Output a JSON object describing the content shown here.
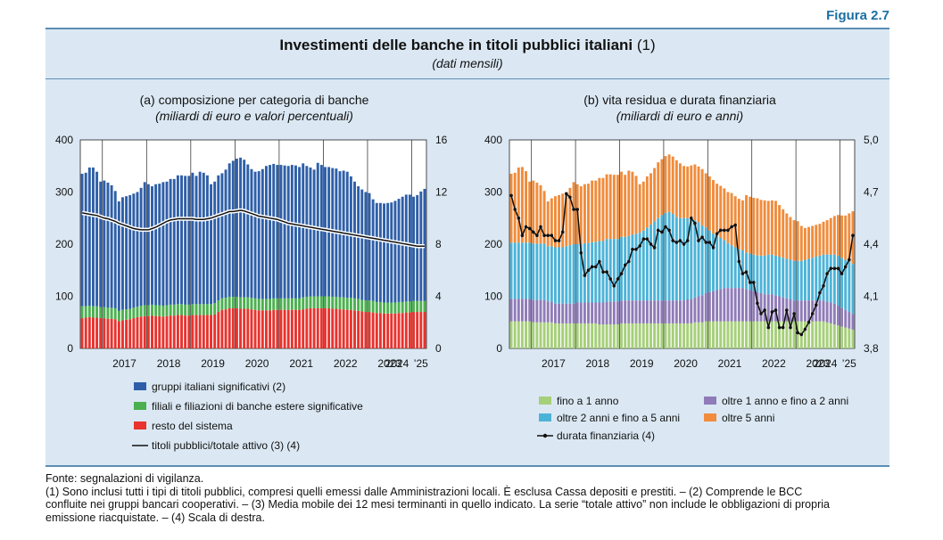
{
  "figure_label": "Figura 2.7",
  "header": {
    "title": "Investimenti delle banche in titoli pubblici italiani",
    "title_note": "(1)",
    "subtitle": "(dati mensili)"
  },
  "panels": {
    "a": {
      "title": "(a) composizione per categoria di banche",
      "subtitle": "(miliardi di euro e valori percentuali)"
    },
    "b": {
      "title": "(b) vita residua e durata finanziaria",
      "subtitle": "(miliardi di euro e anni)"
    }
  },
  "footer": {
    "source": "Fonte: segnalazioni di vigilanza.",
    "note1": "(1) Sono inclusi tutti i tipi di titoli pubblici, compresi quelli emessi dalle Amministrazioni locali. È esclusa Cassa depositi e prestiti. – (2) Comprende le BCC",
    "note2": "confluite nei gruppi bancari cooperativi. – (3) Media mobile dei 12 mesi terminanti in quello indicato. La serie “totale attivo” non include le obbligazioni di propria",
    "note3": "emissione riacquistate. – (4) Scala di destra."
  },
  "colors": {
    "blue": "#2e5fa8",
    "green": "#4cb050",
    "red": "#e8332e",
    "lightgreen": "#a6cf7a",
    "purple": "#8f7bb8",
    "cyan": "#4cb3d8",
    "orange": "#f08c3c",
    "box": "#dbe8f3"
  },
  "chart_data": [
    {
      "id": "a",
      "type": "bar",
      "stacked": true,
      "title": "(a) composizione per categoria di banche",
      "subtitle": "(miliardi di euro e valori percentuali)",
      "x_labels": [
        "2017",
        "2018",
        "2019",
        "2020",
        "2021",
        "2022",
        "2023",
        "2024",
        "’25"
      ],
      "ylim_left": [
        0,
        400
      ],
      "yticks_left": [
        "400",
        "300",
        "200",
        "100",
        "0"
      ],
      "ylim_right": [
        0,
        16
      ],
      "yticks_right": [
        "16",
        "12",
        "8",
        "4",
        "0"
      ],
      "series": [
        {
          "name": "resto del sistema",
          "color": "#e8332e",
          "values": [
            58,
            59,
            60,
            59,
            59,
            58,
            58,
            57,
            57,
            56,
            52,
            54,
            55,
            56,
            58,
            60,
            61,
            62,
            62,
            63,
            62,
            62,
            61,
            62,
            63,
            63,
            64,
            64,
            63,
            63,
            64,
            64,
            64,
            64,
            64,
            64,
            65,
            70,
            74,
            75,
            77,
            77,
            77,
            76,
            76,
            76,
            75,
            74,
            73,
            73,
            73,
            73,
            74,
            74,
            74,
            74,
            74,
            74,
            74,
            74,
            75,
            76,
            77,
            77,
            77,
            77,
            77,
            77,
            76,
            76,
            75,
            75,
            74,
            74,
            73,
            72,
            71,
            70,
            70,
            69,
            68,
            68,
            67,
            67,
            67,
            67,
            68,
            68,
            69,
            69,
            70,
            70,
            70,
            70
          ]
        },
        {
          "name": "filiali e filiazioni di banche estere significative",
          "color": "#4cb050",
          "values": [
            23,
            22,
            22,
            22,
            22,
            21,
            21,
            21,
            21,
            21,
            20,
            20,
            20,
            20,
            20,
            20,
            21,
            21,
            21,
            21,
            21,
            21,
            21,
            21,
            21,
            21,
            21,
            21,
            21,
            21,
            21,
            21,
            21,
            21,
            21,
            21,
            22,
            22,
            22,
            22,
            22,
            22,
            22,
            22,
            22,
            22,
            22,
            22,
            22,
            22,
            22,
            22,
            22,
            22,
            22,
            22,
            22,
            22,
            22,
            22,
            23,
            23,
            23,
            23,
            23,
            23,
            23,
            23,
            23,
            23,
            23,
            23,
            23,
            23,
            23,
            23,
            22,
            22,
            22,
            22,
            21,
            21,
            21,
            21,
            21,
            21,
            21,
            21,
            21,
            21,
            21,
            21,
            21,
            21
          ]
        },
        {
          "name": "gruppi italiani significativi (2)",
          "color": "#2e5fa8",
          "values": [
            254,
            256,
            265,
            266,
            258,
            241,
            243,
            240,
            235,
            225,
            210,
            216,
            217,
            218,
            219,
            220,
            226,
            236,
            232,
            227,
            232,
            233,
            237,
            237,
            241,
            241,
            247,
            247,
            247,
            247,
            252,
            246,
            254,
            252,
            247,
            230,
            233,
            240,
            240,
            246,
            256,
            261,
            265,
            268,
            264,
            255,
            247,
            243,
            245,
            249,
            255,
            257,
            258,
            256,
            256,
            255,
            254,
            256,
            255,
            252,
            257,
            251,
            247,
            243,
            256,
            252,
            248,
            248,
            247,
            246,
            242,
            243,
            242,
            233,
            224,
            216,
            212,
            208,
            206,
            195,
            190,
            190,
            190,
            191,
            192,
            195,
            198,
            202,
            205,
            205,
            200,
            203,
            210,
            215
          ]
        }
      ],
      "line": {
        "name": "titoli pubblici/totale attivo (3) (4)",
        "axis": "right",
        "values": [
          10.4,
          10.35,
          10.3,
          10.25,
          10.2,
          10.1,
          10.0,
          9.95,
          9.85,
          9.75,
          9.6,
          9.5,
          9.4,
          9.3,
          9.2,
          9.15,
          9.1,
          9.1,
          9.1,
          9.2,
          9.3,
          9.45,
          9.6,
          9.75,
          9.85,
          9.9,
          9.95,
          9.95,
          9.95,
          9.95,
          9.95,
          9.9,
          9.9,
          9.9,
          9.95,
          10.0,
          10.1,
          10.2,
          10.3,
          10.4,
          10.5,
          10.5,
          10.55,
          10.6,
          10.55,
          10.45,
          10.35,
          10.25,
          10.15,
          10.1,
          10.05,
          10.0,
          9.95,
          9.9,
          9.8,
          9.7,
          9.6,
          9.55,
          9.5,
          9.45,
          9.4,
          9.35,
          9.3,
          9.25,
          9.2,
          9.15,
          9.1,
          9.05,
          9.0,
          8.95,
          8.9,
          8.85,
          8.8,
          8.75,
          8.7,
          8.65,
          8.6,
          8.55,
          8.5,
          8.45,
          8.4,
          8.35,
          8.3,
          8.25,
          8.2,
          8.15,
          8.1,
          8.05,
          8.0,
          7.95,
          7.9,
          7.85,
          7.85,
          7.85
        ]
      },
      "legend": [
        {
          "label": "gruppi italiani significativi (2)",
          "kind": "box",
          "color": "#2e5fa8"
        },
        {
          "label": "filiali e filiazioni di banche estere significative",
          "kind": "box",
          "color": "#4cb050"
        },
        {
          "label": "resto del sistema",
          "kind": "box",
          "color": "#e8332e"
        },
        {
          "label": "titoli pubblici/totale attivo (3) (4)",
          "kind": "line",
          "color": "#111111"
        }
      ]
    },
    {
      "id": "b",
      "type": "bar",
      "stacked": true,
      "title": "(b) vita residua e durata finanziaria",
      "subtitle": "(miliardi di euro e anni)",
      "x_labels": [
        "2017",
        "2018",
        "2019",
        "2020",
        "2021",
        "2022",
        "2023",
        "2024",
        "’25"
      ],
      "ylim_left": [
        0,
        400
      ],
      "yticks_left": [
        "400",
        "300",
        "200",
        "100",
        "0"
      ],
      "ylim_right": [
        3.8,
        5.0
      ],
      "yticks_right": [
        "5,0",
        "4,7",
        "4,4",
        "4,1",
        "3,8"
      ],
      "series": [
        {
          "name": "fino a 1 anno",
          "color": "#a6cf7a",
          "values": [
            52,
            52,
            52,
            52,
            52,
            52,
            50,
            50,
            50,
            50,
            50,
            50,
            48,
            48,
            48,
            48,
            48,
            48,
            48,
            48,
            48,
            48,
            48,
            48,
            46,
            46,
            46,
            46,
            46,
            46,
            48,
            48,
            48,
            48,
            48,
            48,
            48,
            48,
            48,
            48,
            48,
            48,
            48,
            48,
            48,
            48,
            48,
            48,
            48,
            48,
            50,
            50,
            50,
            52,
            52,
            52,
            52,
            52,
            52,
            52,
            52,
            52,
            52,
            52,
            52,
            52,
            52,
            52,
            52,
            52,
            52,
            52,
            52,
            52,
            52,
            52,
            52,
            52,
            52,
            52,
            52,
            52,
            52,
            52,
            52,
            52,
            50,
            48,
            46,
            44,
            42,
            40,
            38,
            36
          ]
        },
        {
          "name": "oltre 1 anno e fino a 2 anni",
          "color": "#8f7bb8",
          "values": [
            43,
            43,
            43,
            43,
            43,
            43,
            43,
            43,
            43,
            43,
            40,
            40,
            38,
            38,
            38,
            38,
            38,
            38,
            40,
            40,
            40,
            40,
            40,
            40,
            42,
            42,
            44,
            44,
            44,
            44,
            44,
            44,
            44,
            44,
            44,
            44,
            44,
            44,
            44,
            44,
            44,
            44,
            44,
            44,
            44,
            44,
            44,
            44,
            46,
            46,
            48,
            50,
            52,
            54,
            56,
            58,
            60,
            62,
            64,
            64,
            64,
            64,
            64,
            64,
            62,
            60,
            58,
            56,
            54,
            52,
            52,
            52,
            50,
            48,
            46,
            44,
            42,
            40,
            40,
            40,
            40,
            40,
            40,
            40,
            40,
            40,
            40,
            40,
            40,
            38,
            36,
            34,
            32,
            30
          ]
        },
        {
          "name": "oltre 2 anni e fino a 5 anni",
          "color": "#4cb3d8",
          "values": [
            108,
            108,
            108,
            108,
            108,
            108,
            108,
            108,
            108,
            108,
            106,
            106,
            108,
            108,
            108,
            110,
            112,
            114,
            112,
            112,
            114,
            114,
            116,
            116,
            118,
            118,
            120,
            120,
            120,
            120,
            122,
            122,
            124,
            126,
            128,
            130,
            134,
            140,
            146,
            152,
            158,
            164,
            168,
            170,
            166,
            160,
            158,
            158,
            156,
            154,
            148,
            142,
            134,
            126,
            118,
            110,
            104,
            98,
            92,
            86,
            82,
            78,
            74,
            72,
            70,
            70,
            70,
            70,
            72,
            74,
            76,
            76,
            76,
            76,
            76,
            76,
            76,
            76,
            76,
            76,
            78,
            80,
            82,
            84,
            86,
            88,
            90,
            92,
            94,
            96,
            96,
            96,
            96,
            96
          ]
        },
        {
          "name": "oltre 5 anni",
          "color": "#f08c3c",
          "values": [
            132,
            134,
            144,
            145,
            137,
            117,
            121,
            117,
            112,
            101,
            86,
            92,
            98,
            100,
            103,
            104,
            110,
            119,
            115,
            111,
            113,
            114,
            118,
            118,
            121,
            121,
            124,
            124,
            123,
            123,
            125,
            119,
            125,
            121,
            111,
            93,
            94,
            98,
            98,
            102,
            107,
            107,
            109,
            110,
            110,
            109,
            105,
            100,
            99,
            103,
            107,
            107,
            108,
            104,
            104,
            103,
            100,
            100,
            99,
            98,
            100,
            98,
            97,
            96,
            110,
            109,
            109,
            110,
            107,
            106,
            103,
            104,
            105,
            99,
            93,
            87,
            82,
            78,
            76,
            67,
            61,
            61,
            61,
            61,
            61,
            63,
            66,
            70,
            74,
            78,
            81,
            85,
            93,
            101
          ]
        }
      ],
      "line": {
        "name": "durata finanziaria (4)",
        "axis": "right",
        "values": [
          4.68,
          4.6,
          4.55,
          4.45,
          4.5,
          4.49,
          4.47,
          4.45,
          4.5,
          4.45,
          4.45,
          4.45,
          4.42,
          4.42,
          4.47,
          4.69,
          4.67,
          4.6,
          4.6,
          4.35,
          4.22,
          4.25,
          4.27,
          4.27,
          4.3,
          4.24,
          4.24,
          4.2,
          4.16,
          4.2,
          4.23,
          4.28,
          4.3,
          4.37,
          4.37,
          4.39,
          4.43,
          4.43,
          4.4,
          4.38,
          4.48,
          4.47,
          4.5,
          4.48,
          4.42,
          4.41,
          4.42,
          4.4,
          4.42,
          4.55,
          4.52,
          4.42,
          4.44,
          4.41,
          4.41,
          4.38,
          4.46,
          4.48,
          4.48,
          4.48,
          4.5,
          4.51,
          4.3,
          4.23,
          4.24,
          4.18,
          4.18,
          4.06,
          4.0,
          4.02,
          3.92,
          4.01,
          4.02,
          3.92,
          3.92,
          4.02,
          3.92,
          4.0,
          3.89,
          3.88,
          3.91,
          3.95,
          4.0,
          4.05,
          4.12,
          4.16,
          4.23,
          4.26,
          4.26,
          4.26,
          4.23,
          4.27,
          4.31,
          4.45
        ]
      },
      "legend": [
        {
          "label": "fino a 1 anno",
          "kind": "box",
          "color": "#a6cf7a"
        },
        {
          "label": "oltre 1 anno e fino a 2 anni",
          "kind": "box",
          "color": "#8f7bb8"
        },
        {
          "label": "oltre 2 anni e fino a 5 anni",
          "kind": "box",
          "color": "#4cb3d8"
        },
        {
          "label": "oltre 5 anni",
          "kind": "box",
          "color": "#f08c3c"
        },
        {
          "label": "durata finanziaria (4)",
          "kind": "marker-line",
          "color": "#111111"
        }
      ]
    }
  ]
}
